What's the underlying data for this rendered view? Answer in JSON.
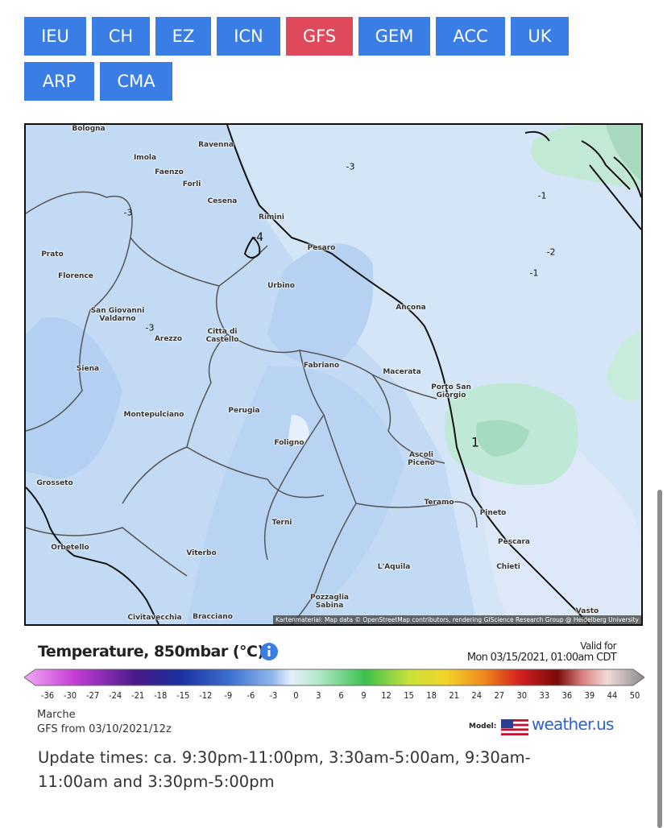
{
  "nav": {
    "buttons": [
      {
        "label": "IEU"
      },
      {
        "label": "CH"
      },
      {
        "label": "EZ"
      },
      {
        "label": "ICN"
      },
      {
        "label": "GFS",
        "active": true
      },
      {
        "label": "GEM"
      },
      {
        "label": "ACC"
      },
      {
        "label": "UK"
      },
      {
        "label": "ARP"
      },
      {
        "label": "CMA"
      }
    ]
  },
  "map": {
    "cities": [
      "Bologna",
      "Ravenna",
      "Imola",
      "Faenzo",
      "Forli",
      "Cesena",
      "Rimini",
      "Pesaro",
      "Prato",
      "Florence",
      "Urbino",
      "San Giovanni\nValdarno",
      "Arezzo",
      "Citta di\nCastello",
      "Ancona",
      "Siena",
      "Fabriano",
      "Macerata",
      "Porto San\nGiorgio",
      "Montepulciano",
      "Perugia",
      "Foligno",
      "Ascoli\nPiceno",
      "Grosseto",
      "Teramo",
      "Pineto",
      "Terni",
      "Pescara",
      "Orbetello",
      "Viterbo",
      "L'Aquila",
      "Chieti",
      "Pozzaglia\nSabina",
      "Civitavecchia",
      "Bracciano",
      "Vasto"
    ],
    "contour_labels": [
      "-3",
      "-1",
      "-2",
      "-1",
      "-3",
      "-3",
      "-4",
      "1"
    ],
    "attribution": "Kartenmaterial: Map data © OpenStreetMap contributors, rendering GIScience Research Group @ Heidelberg University"
  },
  "legend": {
    "title": "Temperature, 850mbar (°C)",
    "valid_label": "Valid for",
    "valid_time": "Mon 03/15/2021, 01:00am CDT",
    "scale": [
      -36,
      -30,
      -27,
      -24,
      -21,
      -18,
      -15,
      -12,
      -9,
      -6,
      -3,
      0,
      3,
      6,
      9,
      12,
      15,
      18,
      21,
      24,
      27,
      30,
      33,
      36,
      39,
      44,
      50
    ]
  },
  "footer": {
    "region": "Marche",
    "run": "GFS from 03/10/2021/12z",
    "model_label": "Model:",
    "brand": "weather.us"
  },
  "update_times": "Update times: ca. 9:30pm-11:00pm, 3:30am-5:00am, 9:30am-11:00am and 3:30pm-5:00pm"
}
